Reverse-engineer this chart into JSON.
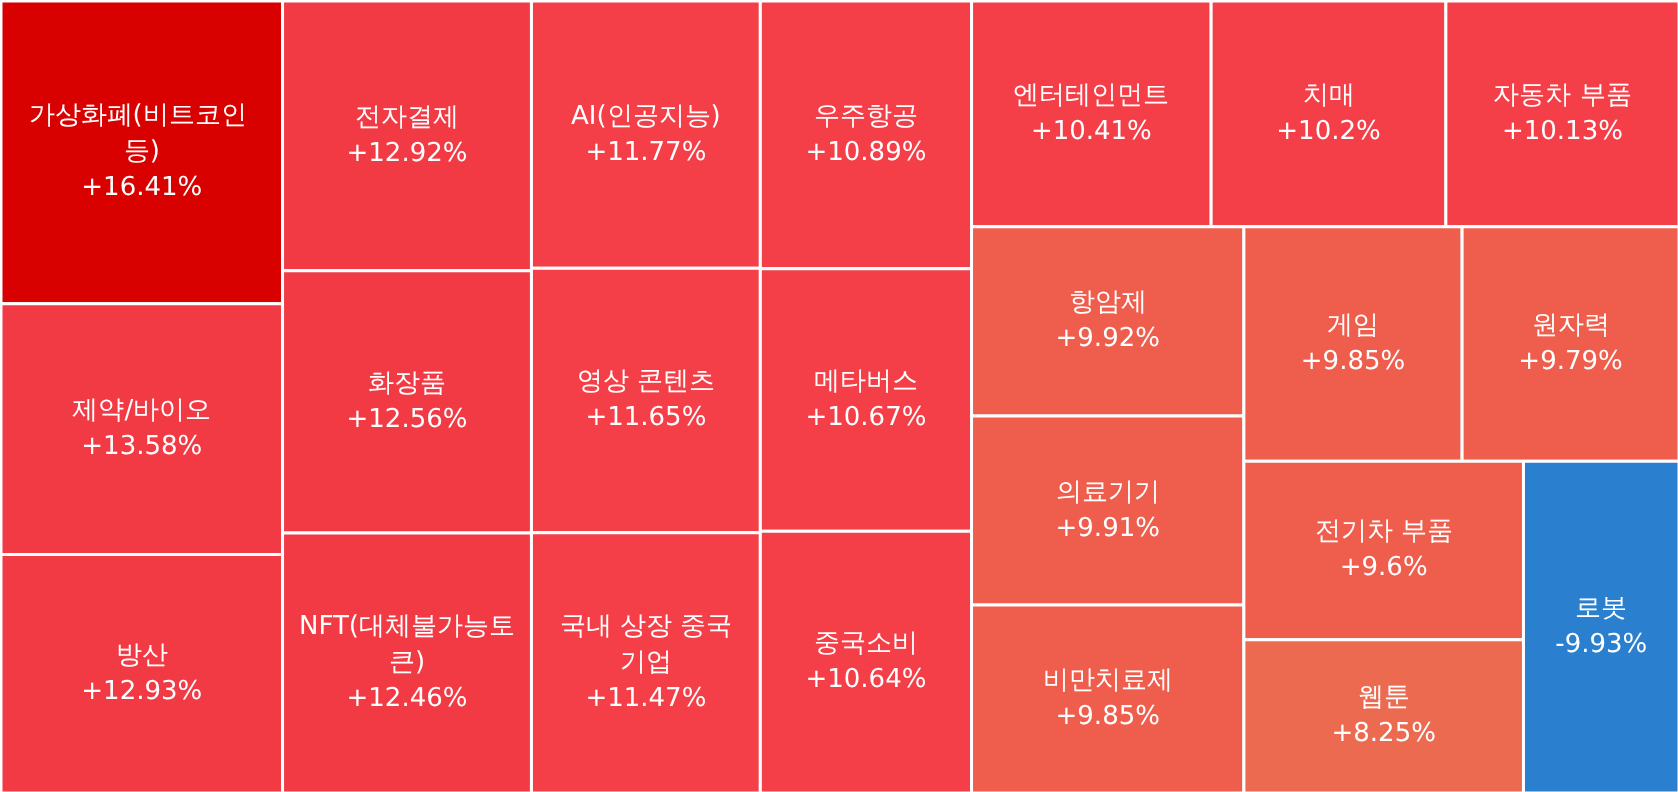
{
  "chart_data": {
    "type": "other",
    "categories": [
      "가상화폐(비트코인 등)",
      "제약/바이오",
      "방산",
      "전자결제",
      "화장품",
      "NFT(대체불가능토큰)",
      "AI(인공지능)",
      "영상 콘텐츠",
      "국내 상장 중국기업",
      "우주항공",
      "메타버스",
      "중국소비",
      "엔터테인먼트",
      "치매",
      "자동차 부품",
      "항암제",
      "의료기기",
      "비만치료제",
      "게임",
      "원자력",
      "전기차 부품",
      "웹툰",
      "로봇"
    ],
    "values": [
      16.41,
      13.58,
      12.93,
      12.92,
      12.56,
      12.46,
      11.77,
      11.65,
      11.47,
      10.89,
      10.67,
      10.64,
      10.41,
      10.2,
      10.13,
      9.92,
      9.91,
      9.85,
      9.85,
      9.79,
      9.6,
      8.25,
      -9.93
    ],
    "value_labels": [
      "+16.41%",
      "+13.58%",
      "+12.93%",
      "+12.92%",
      "+12.56%",
      "+12.46%",
      "+11.77%",
      "+11.65%",
      "+11.47%",
      "+10.89%",
      "+10.67%",
      "+10.64%",
      "+10.41%",
      "+10.2%",
      "+10.13%",
      "+9.92%",
      "+9.91%",
      "+9.85%",
      "+9.85%",
      "+9.79%",
      "+9.6%",
      "+8.25%",
      "-9.93%"
    ],
    "colors": [
      "#d90000",
      "#f23a44",
      "#f23a44",
      "#f23a44",
      "#f23a44",
      "#f23a44",
      "#f53f48",
      "#f53f48",
      "#f53f48",
      "#f53f48",
      "#f53f48",
      "#f53f48",
      "#f53f48",
      "#f53f48",
      "#f53f48",
      "#ef5d4d",
      "#ef5d4d",
      "#ef5d4d",
      "#ef5d4d",
      "#ef5d4d",
      "#ef5d4d",
      "#ec6a50",
      "#2a7fcf"
    ]
  }
}
